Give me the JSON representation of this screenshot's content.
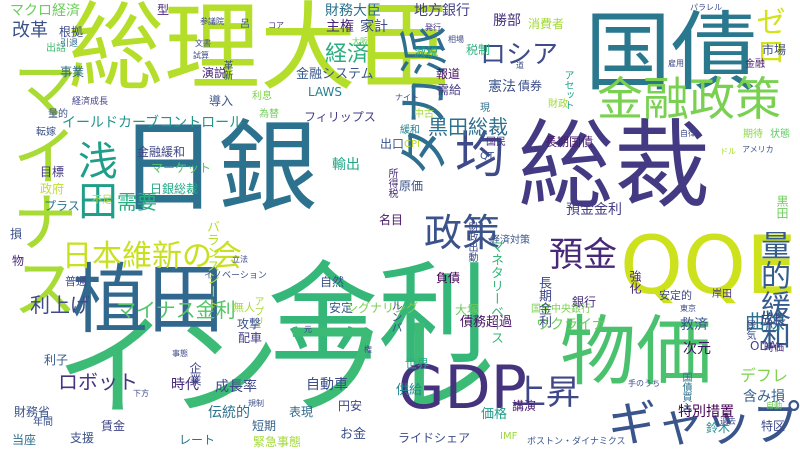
{
  "words": [
    {
      "text": "総理大臣",
      "color": "#b5de2b"
    },
    {
      "text": "国債",
      "color": "#2a788e"
    },
    {
      "text": "日銀",
      "color": "#2c728e"
    },
    {
      "text": "総裁",
      "color": "#443a83"
    },
    {
      "text": "金利",
      "color": "#35b779"
    },
    {
      "text": "インフレ",
      "color": "#3bbb75"
    },
    {
      "text": "マイナス",
      "color": "#a8db34"
    },
    {
      "text": "植田",
      "color": "#31688e"
    },
    {
      "text": "物価",
      "color": "#4ac16d"
    },
    {
      "text": "QQE",
      "color": "#cde11d"
    },
    {
      "text": "GDP",
      "color": "#46337e"
    },
    {
      "text": "金融政策",
      "color": "#7ad151"
    },
    {
      "text": "ギャップ",
      "color": "#39558c"
    },
    {
      "text": "浅田",
      "color": "#1f9e89"
    },
    {
      "text": "均",
      "color": "#3e4a89"
    },
    {
      "text": "日本維新の会",
      "color": "#c8e020"
    },
    {
      "text": "タカ派",
      "color": "#2e6e8e"
    },
    {
      "text": "政策",
      "color": "#3b528b"
    },
    {
      "text": "預金",
      "color": "#482878"
    },
    {
      "text": "上昇",
      "color": "#3f4788"
    },
    {
      "text": "量的緩和",
      "color": "#365c8d"
    },
    {
      "text": "ロシア",
      "color": "#3e4c8a"
    },
    {
      "text": "ゼロ",
      "color": "#d2e21b"
    },
    {
      "text": "マクロ経済",
      "color": "#6ccd5a"
    },
    {
      "text": "財務大臣",
      "color": "#2c728e"
    },
    {
      "text": "地方銀行",
      "color": "#424086"
    },
    {
      "text": "勝部",
      "color": "#46307e"
    },
    {
      "text": "市場",
      "color": "#3e4989"
    },
    {
      "text": "改革",
      "color": "#3b528b"
    },
    {
      "text": "経済",
      "color": "#29af7f"
    },
    {
      "text": "主権",
      "color": "#482576"
    },
    {
      "text": "家計",
      "color": "#3d4d8a"
    },
    {
      "text": "消費者",
      "color": "#a2da37"
    },
    {
      "text": "税制",
      "color": "#2fb47c"
    },
    {
      "text": "金融システム",
      "color": "#38588c"
    },
    {
      "text": "報道",
      "color": "#471365"
    },
    {
      "text": "需給",
      "color": "#453882"
    },
    {
      "text": "減税",
      "color": "#1fa088"
    },
    {
      "text": "憲法",
      "color": "#3a548c"
    },
    {
      "text": "債券",
      "color": "#3d4e8a"
    },
    {
      "text": "アセット",
      "color": "#20a386"
    },
    {
      "text": "金融",
      "color": "#48196b"
    },
    {
      "text": "イールドカーブコントロール",
      "color": "#1f968b"
    },
    {
      "text": "黒田総裁",
      "color": "#2e6f8e"
    },
    {
      "text": "長期国債",
      "color": "#481b6d"
    },
    {
      "text": "期待",
      "color": "#8bd646"
    },
    {
      "text": "状態",
      "color": "#5ec962"
    },
    {
      "text": "為替",
      "color": "#6ece58"
    },
    {
      "text": "フィリップス",
      "color": "#433e85"
    },
    {
      "text": "緩和",
      "color": "#26828e"
    },
    {
      "text": "QT",
      "color": "#39568c"
    },
    {
      "text": "国民",
      "color": "#472f7d"
    },
    {
      "text": "CPI",
      "color": "#bade28"
    },
    {
      "text": "中古",
      "color": "#a5db36"
    },
    {
      "text": "LAWS",
      "color": "#27808e"
    },
    {
      "text": "利息",
      "color": "#7fd34e"
    },
    {
      "text": "転嫁",
      "color": "#3b518b"
    },
    {
      "text": "金融緩和",
      "color": "#404688"
    },
    {
      "text": "出口",
      "color": "#39568c"
    },
    {
      "text": "マーケット",
      "color": "#52c569"
    },
    {
      "text": "日銀総裁",
      "color": "#22a785"
    },
    {
      "text": "需要",
      "color": "#26ad81"
    },
    {
      "text": "輸出",
      "color": "#20a486"
    },
    {
      "text": "不足",
      "color": "#b2dd2d"
    },
    {
      "text": "プラス",
      "color": "#2a778e"
    },
    {
      "text": "原価",
      "color": "#3b528b"
    },
    {
      "text": "名目",
      "color": "#481769"
    },
    {
      "text": "預金金利",
      "color": "#433d84"
    },
    {
      "text": "国家中央銀行",
      "color": "#7cd250"
    },
    {
      "text": "利上げ",
      "color": "#3e4a89"
    },
    {
      "text": "マイナス金利",
      "color": "#54c568"
    },
    {
      "text": "債務超過",
      "color": "#481467"
    },
    {
      "text": "ウクライナ",
      "color": "#6ccd5a"
    },
    {
      "text": "曲線",
      "color": "#2d718e"
    },
    {
      "text": "次元",
      "color": "#471063"
    },
    {
      "text": "救済",
      "color": "#3a548c"
    },
    {
      "text": "成長",
      "color": "#424186"
    },
    {
      "text": "ロボット",
      "color": "#463480"
    },
    {
      "text": "時代",
      "color": "#482878"
    },
    {
      "text": "自動車",
      "color": "#3c4f8a"
    },
    {
      "text": "成長率",
      "color": "#3f4889"
    },
    {
      "text": "伝統的",
      "color": "#2c718e"
    },
    {
      "text": "短期",
      "color": "#34608d"
    },
    {
      "text": "表現",
      "color": "#306a8e"
    },
    {
      "text": "円安",
      "color": "#3f4788"
    },
    {
      "text": "供給",
      "color": "#25848e"
    },
    {
      "text": "価格",
      "color": "#1e9c89"
    },
    {
      "text": "講演",
      "color": "#481c6e"
    },
    {
      "text": "特別措置",
      "color": "#440154"
    },
    {
      "text": "デフレ",
      "color": "#7fd34e"
    },
    {
      "text": "含み損",
      "color": "#34608d"
    },
    {
      "text": "財務省",
      "color": "#3a548c"
    },
    {
      "text": "当座",
      "color": "#2e6e8e"
    },
    {
      "text": "賃金",
      "color": "#414487"
    },
    {
      "text": "支援",
      "color": "#3b528b"
    },
    {
      "text": "レート",
      "color": "#2c728e"
    },
    {
      "text": "緊急事態",
      "color": "#a2da37"
    },
    {
      "text": "お金",
      "color": "#3c4f8a"
    },
    {
      "text": "ライドシェア",
      "color": "#3d4d8a"
    },
    {
      "text": "IMF",
      "color": "#9dd93b"
    },
    {
      "text": "ボストン・ダイナミクス",
      "color": "#39568c"
    },
    {
      "text": "鈴木",
      "color": "#218f8d"
    },
    {
      "text": "特区",
      "color": "#3e4989"
    },
    {
      "text": "ODA",
      "color": "#414487"
    },
    {
      "text": "時価",
      "color": "#482878"
    },
    {
      "text": "岸田",
      "color": "#46337e"
    },
    {
      "text": "安定的",
      "color": "#3f4889"
    },
    {
      "text": "強化",
      "color": "#482475"
    },
    {
      "text": "銀行",
      "color": "#472d7b"
    },
    {
      "text": "負債",
      "color": "#440154"
    },
    {
      "text": "大塚",
      "color": "#6ccd5a"
    },
    {
      "text": "自然",
      "color": "#3b518b"
    },
    {
      "text": "安定",
      "color": "#38598c"
    },
    {
      "text": "シグナリング",
      "color": "#7ad151"
    },
    {
      "text": "世界",
      "color": "#25ac82"
    },
    {
      "text": "攻撃",
      "color": "#3b518b"
    },
    {
      "text": "配車",
      "color": "#433d84"
    },
    {
      "text": "無人",
      "color": "#a5db36"
    },
    {
      "text": "利子",
      "color": "#38598c"
    },
    {
      "text": "普通",
      "color": "#3e4c8a"
    },
    {
      "text": "政府",
      "color": "#c0df25"
    },
    {
      "text": "目標",
      "color": "#443983"
    },
    {
      "text": "事業",
      "color": "#31688e"
    },
    {
      "text": "演説",
      "color": "#482979"
    },
    {
      "text": "導入",
      "color": "#3b528b"
    },
    {
      "text": "根拠",
      "color": "#3e4c8a"
    },
    {
      "text": "出話",
      "color": "#40bd72"
    },
    {
      "text": "年間",
      "color": "#3a548c"
    },
    {
      "text": "引退",
      "color": "#2f6b8e"
    },
    {
      "text": "所得税",
      "color": "#472a7a"
    },
    {
      "text": "財政出動",
      "color": "#3d4d8a"
    },
    {
      "text": "イノベーション",
      "color": "#3c4f8a"
    },
    {
      "text": "経済成長",
      "color": "#424086"
    },
    {
      "text": "現",
      "color": "#2d708e"
    },
    {
      "text": "型",
      "color": "#482979"
    },
    {
      "text": "財政",
      "color": "#a0da39"
    },
    {
      "text": "量的",
      "color": "#3b528b"
    },
    {
      "text": "経済対策",
      "color": "#39568c"
    },
    {
      "text": "バランスシート",
      "color": "#b5de2b"
    },
    {
      "text": "ルンバ",
      "color": "#3e4a89"
    },
    {
      "text": "マネタリーベース",
      "color": "#35b779"
    },
    {
      "text": "長期金利",
      "color": "#3e4989"
    },
    {
      "text": "企業",
      "color": "#414487"
    },
    {
      "text": "アプリ",
      "color": "#a8db34"
    },
    {
      "text": "革新",
      "color": "#3b528b"
    },
    {
      "text": "黒田",
      "color": "#6ccd5a"
    },
    {
      "text": "景気",
      "color": "#3e4c8a"
    },
    {
      "text": "国債買入",
      "color": "#2c728e"
    },
    {
      "text": "物",
      "color": "#482878"
    },
    {
      "text": "損",
      "color": "#3b528b"
    },
    {
      "text": "呂",
      "color": "#38598c"
    },
    {
      "text": "参議院",
      "color": "#3e4a89"
    },
    {
      "text": "文書",
      "color": "#3e4c8a"
    },
    {
      "text": "コア",
      "color": "#443983"
    },
    {
      "text": "発行",
      "color": "#443983"
    },
    {
      "text": "パラレル",
      "color": "#3e4a89"
    },
    {
      "text": "試算",
      "color": "#3e4c8a"
    },
    {
      "text": "アメリカ",
      "color": "#3b528b"
    },
    {
      "text": "自律",
      "color": "#3e4a89"
    },
    {
      "text": "手のうち",
      "color": "#3e4c8a"
    },
    {
      "text": "過去",
      "color": "#3e4c8a"
    },
    {
      "text": "下方",
      "color": "#3e4a89"
    },
    {
      "text": "規制",
      "color": "#3b528b"
    },
    {
      "text": "事態",
      "color": "#3e4c8a"
    },
    {
      "text": "立法",
      "color": "#3e4a89"
    },
    {
      "text": "ナイト",
      "color": "#3e4c8a"
    },
    {
      "text": "元",
      "color": "#3e4a89"
    },
    {
      "text": "権",
      "color": "#3e4c8a"
    },
    {
      "text": "道",
      "color": "#3b528b"
    },
    {
      "text": "自動",
      "color": "#6ccd5a"
    },
    {
      "text": "ドル",
      "color": "#a8db34"
    },
    {
      "text": "雇用",
      "color": "#3e4a89"
    },
    {
      "text": "大阪",
      "color": "#6ccd5a"
    },
    {
      "text": "東京",
      "color": "#3e4c8a"
    },
    {
      "text": "相場",
      "color": "#3e4a89"
    },
    {
      "text": "政治",
      "color": "#3e4c8a"
    }
  ]
}
